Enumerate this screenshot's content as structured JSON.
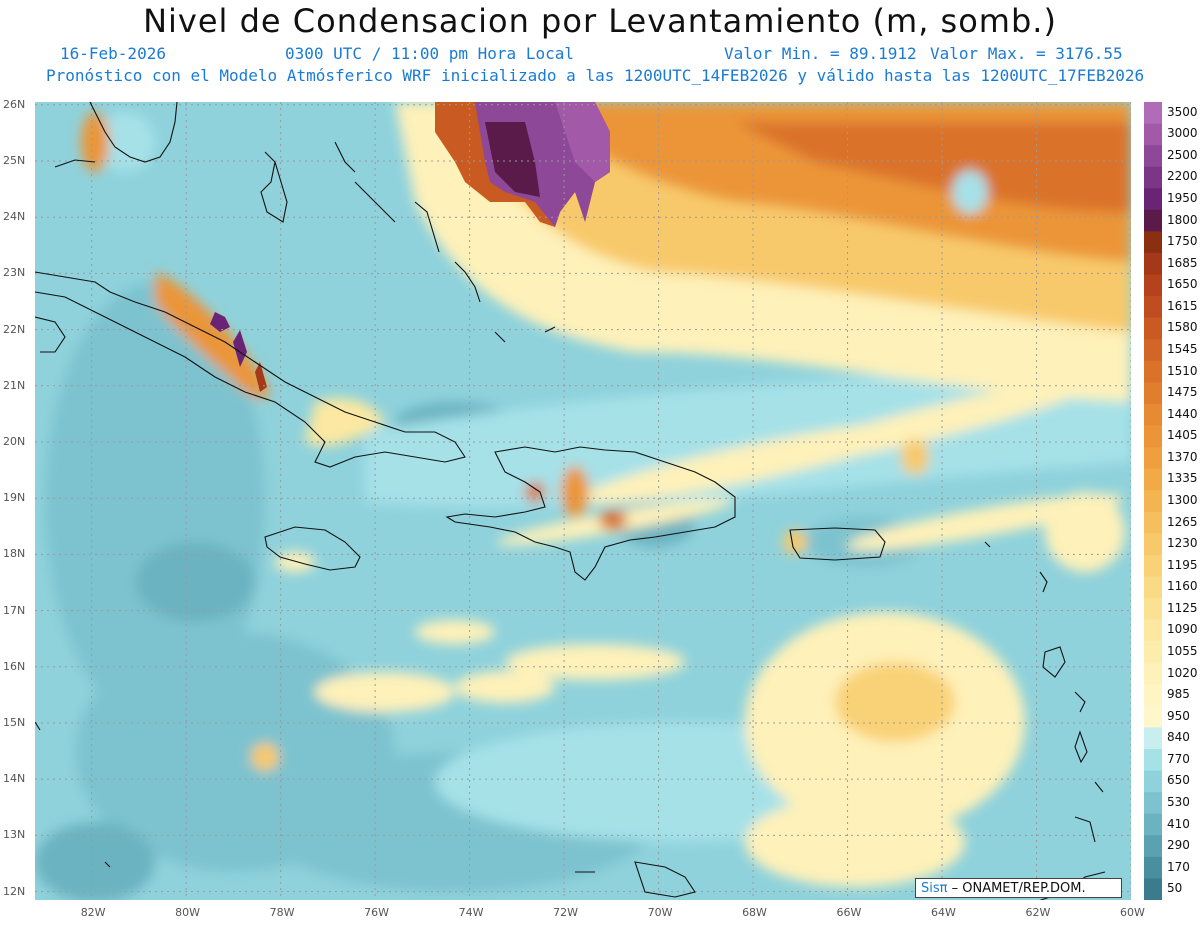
{
  "title": "Nivel de Condensacion por Levantamiento (m, somb.)",
  "date": "16-Feb-2026",
  "time": "0300 UTC / 11:00 pm Hora Local",
  "min_label": "Valor Min. = 89.1912",
  "max_label": "Valor Max. = 3176.55",
  "model_line": "Pronóstico con el Modelo Atmósferico WRF inicializado a las 1200UTC_14FEB2026 y válido hasta las  1200UTC_17FEB2026",
  "credit_sis": "Sisπ",
  "credit_org": " – ONAMET/REP.DOM.",
  "lat_labels": [
    "26N",
    "25N",
    "24N",
    "23N",
    "22N",
    "21N",
    "20N",
    "19N",
    "18N",
    "17N",
    "16N",
    "15N",
    "14N",
    "13N",
    "12N"
  ],
  "lon_labels": [
    "82W",
    "80W",
    "78W",
    "76W",
    "74W",
    "72W",
    "70W",
    "68W",
    "66W",
    "64W",
    "62W",
    "60W"
  ],
  "colorbar": {
    "labels": [
      "3500",
      "3000",
      "2500",
      "2200",
      "1950",
      "1800",
      "1750",
      "1685",
      "1650",
      "1615",
      "1580",
      "1545",
      "1510",
      "1475",
      "1440",
      "1405",
      "1370",
      "1335",
      "1300",
      "1265",
      "1230",
      "1195",
      "1160",
      "1125",
      "1090",
      "1055",
      "1020",
      "985",
      "950",
      "840",
      "770",
      "650",
      "530",
      "410",
      "290",
      "170",
      "50"
    ],
    "colors": [
      "#b06cb6",
      "#a25aa8",
      "#8e4898",
      "#7b3688",
      "#6a2475",
      "#5a1a4a",
      "#8a2f12",
      "#a4391a",
      "#b4431d",
      "#c04d20",
      "#c95a22",
      "#d26626",
      "#da722a",
      "#e07e2e",
      "#e68a33",
      "#eb9538",
      "#ef9f3e",
      "#f2aa47",
      "#f4b452",
      "#f6bf5e",
      "#f8c96a",
      "#f9d277",
      "#fadb85",
      "#fbe293",
      "#fce8a0",
      "#fdedad",
      "#fef1b9",
      "#fef4c4",
      "#fff6cc",
      "#c8eef0",
      "#a6e1e8",
      "#8fd2dc",
      "#7dc3cf",
      "#6cb3c1",
      "#5aa1b1",
      "#4a8fa0",
      "#3a7c8e"
    ]
  },
  "grid": {
    "lon_min": -83.2,
    "lon_max": -60,
    "lat_min": 11.85,
    "lat_max": 26.05
  }
}
